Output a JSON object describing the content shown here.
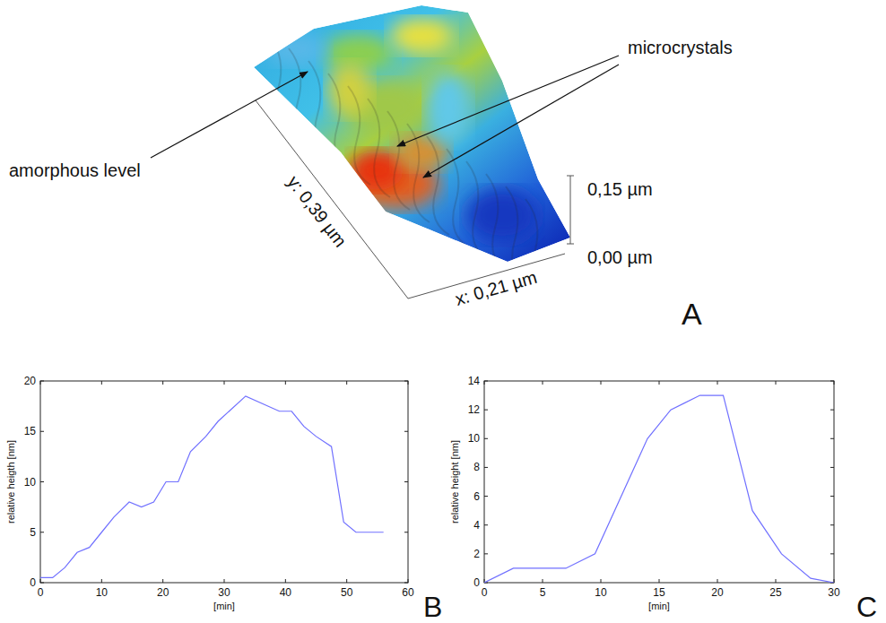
{
  "chart_data": [
    {
      "type": "surface",
      "panel": "A",
      "x_label": "x: 0,21 µm",
      "y_label": "y: 0,39 µm",
      "zlim": [
        0,
        0.15
      ],
      "zticks": [
        {
          "value": 0,
          "label": "0,00 µm"
        },
        {
          "value": 0.15,
          "label": "0,15 µm"
        }
      ],
      "annotations": [
        "microcrystals",
        "amorphous level"
      ]
    },
    {
      "type": "line",
      "panel": "B",
      "x": [
        0,
        2,
        4,
        6,
        8,
        10,
        12,
        14.5,
        16.5,
        18.5,
        20.5,
        22.5,
        24.5,
        27,
        29,
        33.5,
        39,
        41,
        43,
        45,
        47.5,
        49.5,
        51.5,
        53.5,
        56
      ],
      "series": [
        {
          "color": "#7070ff",
          "values": [
            0.5,
            0.5,
            1.5,
            3,
            3.5,
            5,
            6.5,
            8,
            7.5,
            8,
            10,
            10,
            13,
            14.5,
            16,
            18.5,
            17,
            17,
            15.5,
            14.5,
            13.5,
            6,
            5,
            5,
            5
          ]
        }
      ],
      "xlim": [
        0,
        60
      ],
      "xticks": [
        0,
        10,
        20,
        30,
        40,
        50,
        60
      ],
      "ylim": [
        0,
        20
      ],
      "yticks": [
        0,
        5,
        10,
        15,
        20
      ],
      "x_label": "[min]",
      "y_label": "relative heigth [nm]"
    },
    {
      "type": "line",
      "panel": "C",
      "x": [
        0,
        2.5,
        7,
        9.5,
        14,
        16,
        18.5,
        20.5,
        23,
        25.5,
        28,
        30
      ],
      "series": [
        {
          "color": "#7070ff",
          "values": [
            0,
            1,
            1,
            2,
            10,
            12,
            13,
            13,
            5,
            2,
            0.3,
            0
          ]
        }
      ],
      "xlim": [
        0,
        30
      ],
      "xticks": [
        0,
        5,
        10,
        15,
        20,
        25,
        30
      ],
      "ylim": [
        0,
        14
      ],
      "yticks": [
        0,
        2,
        4,
        6,
        8,
        10,
        12,
        14
      ],
      "x_label": "[min]",
      "y_label": "relative height [nm]"
    }
  ]
}
